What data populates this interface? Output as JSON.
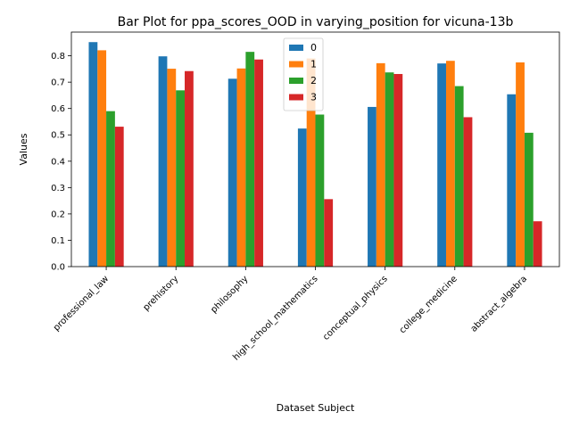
{
  "chart_data": {
    "type": "bar",
    "title": "Bar Plot for ppa_scores_OOD in varying_position for vicuna-13b",
    "xlabel": "Dataset Subject",
    "ylabel": "Values",
    "ylim": [
      0,
      0.89
    ],
    "yticks": [
      0.0,
      0.1,
      0.2,
      0.3,
      0.4,
      0.5,
      0.6,
      0.7,
      0.8
    ],
    "yticklabels": [
      "0.0",
      "0.1",
      "0.2",
      "0.3",
      "0.4",
      "0.5",
      "0.6",
      "0.7",
      "0.8"
    ],
    "categories": [
      "professional_law",
      "prehistory",
      "philosophy",
      "high_school_mathematics",
      "conceptual_physics",
      "college_medicine",
      "abstract_algebra"
    ],
    "series": [
      {
        "name": "0",
        "color": "#1f77b4",
        "values": [
          0.852,
          0.798,
          0.713,
          0.524,
          0.606,
          0.771,
          0.654
        ]
      },
      {
        "name": "1",
        "color": "#ff7f0e",
        "values": [
          0.821,
          0.751,
          0.752,
          0.79,
          0.772,
          0.781,
          0.775
        ]
      },
      {
        "name": "2",
        "color": "#2ca02c",
        "values": [
          0.59,
          0.669,
          0.815,
          0.577,
          0.737,
          0.685,
          0.508
        ]
      },
      {
        "name": "3",
        "color": "#d62728",
        "values": [
          0.531,
          0.742,
          0.786,
          0.256,
          0.731,
          0.567,
          0.172
        ]
      }
    ],
    "legend_position": "top-center",
    "grid": false
  }
}
